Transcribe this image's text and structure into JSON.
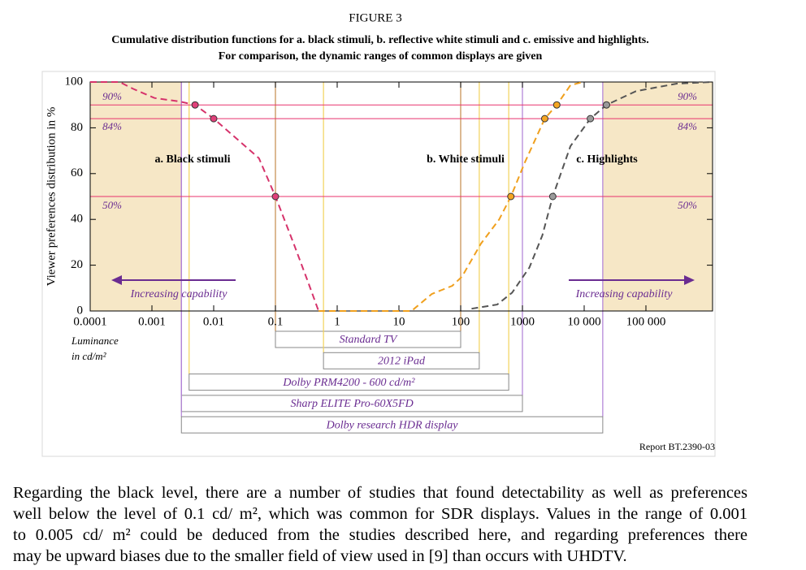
{
  "figure_label": "FIGURE 3",
  "figure_title": [
    "Cumulative distribution functions for a. black stimuli, b. reflective white stimuli and c. emissive and highlights.",
    "For comparison, the dynamic ranges of common displays are given"
  ],
  "source": "Report BT.2390-03",
  "paragraph": [
    "Regarding the black level, there are a number of studies that found detectability as well as preferences",
    "well below the level of 0.1 cd/ m², which was common for SDR displays. Values in the range of 0.001",
    "to 0.005 cd/ m² could be deduced from the studies described here, and regarding preferences there",
    "may be upward biases due to the smaller field of view used in [9] than occurs with UHDTV."
  ],
  "chart_data": {
    "type": "line",
    "xscale": "log",
    "xlabel": [
      "Luminance",
      "in cd/m²"
    ],
    "ylabel": "Viewer preferences distribution in %",
    "xlim": [
      0.0001,
      1200000
    ],
    "ylim": [
      0,
      100
    ],
    "xticks": [
      0.0001,
      0.001,
      0.01,
      0.1,
      1,
      10,
      100,
      1000,
      {
        "value": 10000,
        "label": "10 000"
      },
      {
        "value": 100000,
        "label": "100 000"
      }
    ],
    "yticks": [
      0,
      20,
      40,
      60,
      80,
      100
    ],
    "series": [
      {
        "name": "a. Black stimuli",
        "color": "#d6336b",
        "marker_color": "#e0407a",
        "x": [
          0.0001,
          0.0003,
          0.0005,
          0.0011,
          0.0028,
          0.005,
          0.01,
          0.023,
          0.054,
          0.1,
          0.2,
          0.34,
          0.5
        ],
        "values": [
          100,
          100,
          97,
          93,
          91.5,
          90,
          84,
          75.5,
          66.7,
          50,
          29,
          12.4,
          0
        ],
        "marker_x": [
          0.005,
          0.01,
          0.1
        ],
        "marker_values": [
          90,
          84,
          50
        ]
      },
      {
        "name": "b. White stimuli",
        "color": "#f0a01e",
        "marker_color": "#f5a623",
        "x": [
          0.5,
          16,
          34,
          73,
          105,
          213,
          420,
          650,
          1100,
          2300,
          3600,
          6000,
          9500
        ],
        "values": [
          0,
          0,
          7.4,
          11,
          15,
          29.4,
          40,
          50,
          65,
          84,
          90,
          98.6,
          100
        ],
        "marker_x": [
          650,
          2300,
          3600
        ],
        "marker_values": [
          50,
          84,
          90
        ]
      },
      {
        "name": "c. Highlights",
        "color": "#555555",
        "marker_color": "#9a9a9a",
        "x": [
          150,
          390,
          680,
          1300,
          2100,
          3100,
          6000,
          12600,
          23000,
          69000,
          316000,
          1200000
        ],
        "values": [
          1,
          2.8,
          8,
          19,
          33,
          50,
          72,
          84,
          90,
          96,
          99.3,
          100
        ],
        "marker_x": [
          3100,
          12600,
          23000
        ],
        "marker_values": [
          50,
          84,
          90
        ]
      }
    ],
    "reference_lines": [
      {
        "value": 90,
        "label": "90%"
      },
      {
        "value": 84,
        "label": "84%"
      },
      {
        "value": 50,
        "label": "50%"
      }
    ],
    "reference_color": "#e8336e",
    "shade_color": "#f6e7c6",
    "displays": [
      {
        "name": "Standard TV",
        "range": [
          0.1,
          100
        ],
        "color": "#c48a4a"
      },
      {
        "name": "2012 iPad",
        "range": [
          0.6,
          200
        ],
        "color": "#f2d35a"
      },
      {
        "name": "Dolby PRM4200 - 600 cd/m²",
        "range": [
          0.004,
          600
        ],
        "color": "#f2d35a"
      },
      {
        "name": "Sharp ELITE Pro-60X5FD",
        "range": [
          0.003,
          1000
        ],
        "color": "#b07fd6"
      },
      {
        "name": "Dolby research HDR display",
        "range": [
          0.003,
          20000
        ],
        "color": "#b07fd6"
      }
    ],
    "capability_label": "Increasing capability",
    "capability_color": "#6a2c91"
  }
}
